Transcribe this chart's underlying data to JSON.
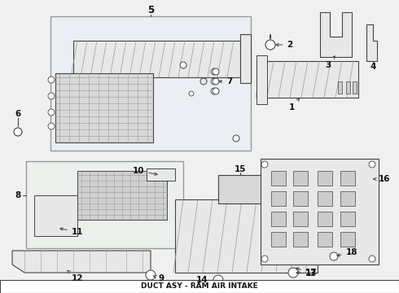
{
  "bg_color": "#f0f0f0",
  "line_color": "#444444",
  "part_fill": "#e8e8e8",
  "hatch_color": "#999999",
  "box5_fill": "#e8eef5",
  "box8_fill": "#eaf0ea",
  "title_text": "DUCT ASY - RAM AIR INTAKE",
  "title_bg": "#ffffff",
  "label_color": "#111111",
  "fig_w": 4.9,
  "fig_h": 3.6,
  "dpi": 100
}
